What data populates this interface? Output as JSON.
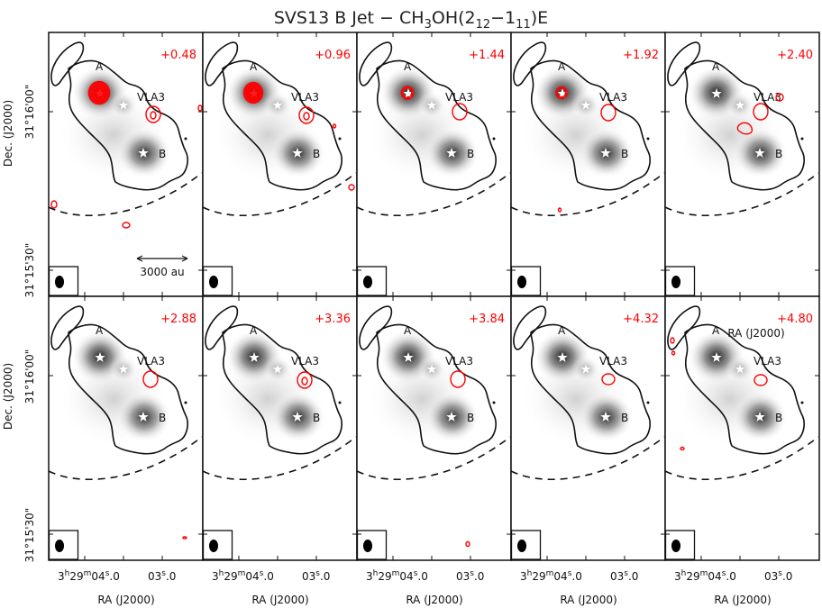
{
  "title": {
    "prefix": "SVS13 B Jet − CH",
    "sub3": "3",
    "mid": "OH(2",
    "sub12": "12",
    "dash": "−1",
    "sub11": "11",
    "suffix": ")E"
  },
  "chart_data": {
    "type": "channel-map grid (contour over greyscale image)",
    "rows": 2,
    "cols": 5,
    "velocity_labels": [
      "+0.48",
      "+0.96",
      "+1.44",
      "+1.92",
      "+2.40",
      "+2.88",
      "+3.36",
      "+3.84",
      "+4.32",
      "+4.80"
    ],
    "sources": [
      "A",
      "VLA3",
      "B"
    ],
    "xlabel": "RA (J2000)",
    "ylabel": "Dec. (J2000)",
    "xticks": [
      "3h29m04.0s",
      "03.0s"
    ],
    "xtick_parts": {
      "first_main": "3",
      "first_h": "h",
      "first_mid": "29",
      "first_m": "m",
      "first_sec": "04",
      "first_frac": ".0",
      "second_sec": "03",
      "second_frac": ".0",
      "sec_mark": "s"
    },
    "yticks": [
      "31°16'00\"",
      "31°15'30\""
    ],
    "scale_bar_label": "3000 au",
    "overlay_label_last_panel": "RA (J2000)",
    "contour_color": "#ff0000"
  }
}
